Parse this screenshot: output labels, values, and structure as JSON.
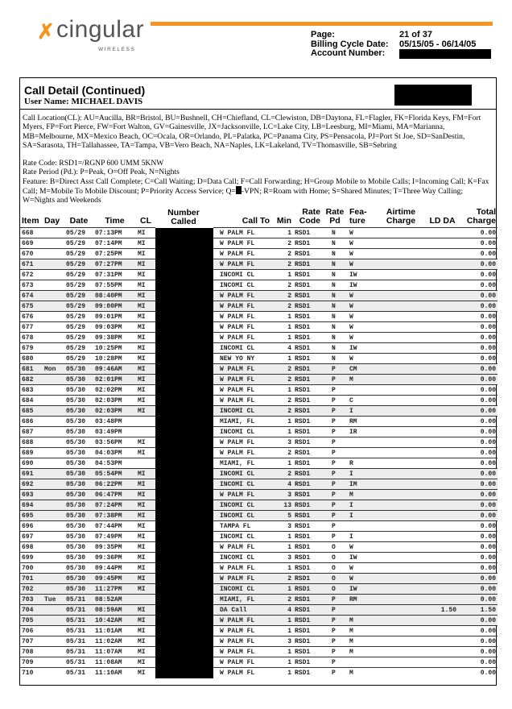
{
  "logo": {
    "brand": "cingular",
    "sub": "WIRELESS",
    "accent": "#f7941d"
  },
  "meta": {
    "page_label": "Page:",
    "page_value": "21 of 37",
    "cycle_label": "Billing Cycle Date:",
    "cycle_value": "05/15/05 - 06/14/05",
    "account_label": "Account Number:"
  },
  "section": {
    "title": "Call Detail (Continued)",
    "user": "User Name: MICHAEL DAVIS"
  },
  "legend": {
    "call_location": "Call Location(CL):  AU=Aucilla, BR=Bristol, BU=Bushnell, CH=Chiefland, CL=Clewiston, DB=Daytona, FL=Flagler, FK=Florida Keys, FM=Fort Myers, FP=Fort Pierce, FW=Fort Walton, GV=Gainesville, JX=Jacksonville, LC=Lake City, LB=Leesburg, MI=Miami, MA=Marianna, MB=Melbourne, MX=Mexico Beach, OC=Ocala, OR=Orlando, PL=Palatka, PC=Panama City, PS=Pensacola, PJ=Port St Joe, SD=SanDestin, SA=Sarasota, TH=Tallahassee, TA=Tampa, VB=Vero Beach, NA=Naples, LK=Lakeland, TV=Thomasville, SB=Sebring",
    "rate_code": "Rate Code: RSD1=/RGNP 600 UMM 5KNW",
    "rate_period": "Rate Period (Pd.): P=Peak, O=Off Peak, N=Nights",
    "feature_a": "Feature: B=Direct Asst Call Complete; C=Call Waiting; D=Data Call; F=Call Forwarding; H=Group Mobile to Mobile Calls; I=Incoming Call; K=Fax Call; M=Mobile To Mobile Discount; P=Priority Access Service; Q=",
    "feature_b": "-VPN; R=Roam with Home; S=Shared Minutes;  T=Three Way Calling; W=Nights and Weekends"
  },
  "columns": [
    "Item",
    "Day",
    "Date",
    "Time",
    "CL",
    "Number Called",
    "Call To",
    "Min",
    "Rate Code",
    "Rate Pd",
    "Fea- ture",
    "Airtime Charge",
    "LD DA",
    "Total Charge"
  ],
  "rows": [
    [
      "668",
      "",
      "05/29",
      "07:13PM",
      "MI",
      "W PALM FL",
      "1",
      "RSD1",
      "N",
      "W",
      "",
      "",
      "0.00"
    ],
    [
      "669",
      "",
      "05/29",
      "07:14PM",
      "MI",
      "W PALM FL",
      "2",
      "RSD1",
      "N",
      "W",
      "",
      "",
      "0.00"
    ],
    [
      "670",
      "",
      "05/29",
      "07:25PM",
      "MI",
      "W PALM FL",
      "2",
      "RSD1",
      "N",
      "W",
      "",
      "",
      "0.00"
    ],
    [
      "671",
      "",
      "05/29",
      "07:27PM",
      "MI",
      "W PALM FL",
      "2",
      "RSD1",
      "N",
      "W",
      "",
      "",
      "0.00"
    ],
    [
      "672",
      "",
      "05/29",
      "07:31PM",
      "MI",
      "INCOMI CL",
      "1",
      "RSD1",
      "N",
      "IW",
      "",
      "",
      "0.00"
    ],
    [
      "673",
      "",
      "05/29",
      "07:55PM",
      "MI",
      "INCOMI CL",
      "2",
      "RSD1",
      "N",
      "IW",
      "",
      "",
      "0.00"
    ],
    [
      "674",
      "",
      "05/29",
      "08:40PM",
      "MI",
      "W PALM FL",
      "2",
      "RSD1",
      "N",
      "W",
      "",
      "",
      "0.00"
    ],
    [
      "675",
      "",
      "05/29",
      "09:00PM",
      "MI",
      "W PALM FL",
      "2",
      "RSD1",
      "N",
      "W",
      "",
      "",
      "0.00"
    ],
    [
      "676",
      "",
      "05/29",
      "09:01PM",
      "MI",
      "W PALM FL",
      "1",
      "RSD1",
      "N",
      "W",
      "",
      "",
      "0.00"
    ],
    [
      "677",
      "",
      "05/29",
      "09:03PM",
      "MI",
      "W PALM FL",
      "1",
      "RSD1",
      "N",
      "W",
      "",
      "",
      "0.00"
    ],
    [
      "678",
      "",
      "05/29",
      "09:38PM",
      "MI",
      "W PALM FL",
      "1",
      "RSD1",
      "N",
      "W",
      "",
      "",
      "0.00"
    ],
    [
      "679",
      "",
      "05/29",
      "10:25PM",
      "MI",
      "INCOMI CL",
      "4",
      "RSD1",
      "N",
      "IW",
      "",
      "",
      "0.00"
    ],
    [
      "680",
      "",
      "05/29",
      "10:28PM",
      "MI",
      "NEW YO NY",
      "1",
      "RSD1",
      "N",
      "W",
      "",
      "",
      "0.00"
    ],
    [
      "681",
      "Mon",
      "05/30",
      "09:46AM",
      "MI",
      "W PALM FL",
      "2",
      "RSD1",
      "P",
      "CM",
      "",
      "",
      "0.00"
    ],
    [
      "682",
      "",
      "05/30",
      "02:01PM",
      "MI",
      "W PALM FL",
      "2",
      "RSD1",
      "P",
      "M",
      "",
      "",
      "0.00"
    ],
    [
      "683",
      "",
      "05/30",
      "02:02PM",
      "MI",
      "W PALM FL",
      "1",
      "RSD1",
      "P",
      "",
      "",
      "",
      "0.00"
    ],
    [
      "684",
      "",
      "05/30",
      "02:03PM",
      "MI",
      "W PALM FL",
      "2",
      "RSD1",
      "P",
      "C",
      "",
      "",
      "0.00"
    ],
    [
      "685",
      "",
      "05/30",
      "02:03PM",
      "MI",
      "INCOMI CL",
      "2",
      "RSD1",
      "P",
      "I",
      "",
      "",
      "0.00"
    ],
    [
      "686",
      "",
      "05/30",
      "03:48PM",
      "",
      "MIAMI, FL",
      "1",
      "RSD1",
      "P",
      "RM",
      "",
      "",
      "0.00"
    ],
    [
      "687",
      "",
      "05/30",
      "03:49PM",
      "",
      "INCOMI CL",
      "1",
      "RSD1",
      "P",
      "IR",
      "",
      "",
      "0.00"
    ],
    [
      "688",
      "",
      "05/30",
      "03:56PM",
      "MI",
      "W PALM FL",
      "3",
      "RSD1",
      "P",
      "",
      "",
      "",
      "0.00"
    ],
    [
      "689",
      "",
      "05/30",
      "04:03PM",
      "MI",
      "W PALM FL",
      "2",
      "RSD1",
      "P",
      "",
      "",
      "",
      "0.00"
    ],
    [
      "690",
      "",
      "05/30",
      "04:53PM",
      "",
      "MIAMI, FL",
      "1",
      "RSD1",
      "P",
      "R",
      "",
      "",
      "0.00"
    ],
    [
      "691",
      "",
      "05/30",
      "05:54PM",
      "MI",
      "INCOMI CL",
      "2",
      "RSD1",
      "P",
      "I",
      "",
      "",
      "0.00"
    ],
    [
      "692",
      "",
      "05/30",
      "06:22PM",
      "MI",
      "INCOMI CL",
      "4",
      "RSD1",
      "P",
      "IM",
      "",
      "",
      "0.00"
    ],
    [
      "693",
      "",
      "05/30",
      "06:47PM",
      "MI",
      "W PALM FL",
      "3",
      "RSD1",
      "P",
      "M",
      "",
      "",
      "0.00"
    ],
    [
      "694",
      "",
      "05/30",
      "07:24PM",
      "MI",
      "INCOMI CL",
      "13",
      "RSD1",
      "P",
      "I",
      "",
      "",
      "0.00"
    ],
    [
      "695",
      "",
      "05/30",
      "07:38PM",
      "MI",
      "INCOMI CL",
      "5",
      "RSD1",
      "P",
      "I",
      "",
      "",
      "0.00"
    ],
    [
      "696",
      "",
      "05/30",
      "07:44PM",
      "MI",
      "TAMPA  FL",
      "3",
      "RSD1",
      "P",
      "",
      "",
      "",
      "0.00"
    ],
    [
      "697",
      "",
      "05/30",
      "07:49PM",
      "MI",
      "INCOMI CL",
      "1",
      "RSD1",
      "P",
      "I",
      "",
      "",
      "0.00"
    ],
    [
      "698",
      "",
      "05/30",
      "09:35PM",
      "MI",
      "W PALM FL",
      "1",
      "RSD1",
      "O",
      "W",
      "",
      "",
      "0.00"
    ],
    [
      "699",
      "",
      "05/30",
      "09:36PM",
      "MI",
      "INCOMI CL",
      "3",
      "RSD1",
      "O",
      "IW",
      "",
      "",
      "0.00"
    ],
    [
      "700",
      "",
      "05/30",
      "09:44PM",
      "MI",
      "W PALM FL",
      "1",
      "RSD1",
      "O",
      "W",
      "",
      "",
      "0.00"
    ],
    [
      "701",
      "",
      "05/30",
      "09:45PM",
      "MI",
      "W PALM FL",
      "2",
      "RSD1",
      "O",
      "W",
      "",
      "",
      "0.00"
    ],
    [
      "702",
      "",
      "05/30",
      "11:27PM",
      "MI",
      "INCOMI CL",
      "1",
      "RSD1",
      "O",
      "IW",
      "",
      "",
      "0.00"
    ],
    [
      "703",
      "Tue",
      "05/31",
      "08:52AM",
      "",
      "MIAMI, FL",
      "2",
      "RSD1",
      "P",
      "RM",
      "",
      "",
      "0.00"
    ],
    [
      "704",
      "",
      "05/31",
      "08:59AM",
      "MI",
      "DA Call",
      "4",
      "RSD1",
      "P",
      "",
      "",
      "1.50",
      "1.50"
    ],
    [
      "705",
      "",
      "05/31",
      "10:42AM",
      "MI",
      "W PALM FL",
      "1",
      "RSD1",
      "P",
      "M",
      "",
      "",
      "0.00"
    ],
    [
      "706",
      "",
      "05/31",
      "11:01AM",
      "MI",
      "W PALM FL",
      "1",
      "RSD1",
      "P",
      "M",
      "",
      "",
      "0.00"
    ],
    [
      "707",
      "",
      "05/31",
      "11:02AM",
      "MI",
      "W PALM FL",
      "3",
      "RSD1",
      "P",
      "M",
      "",
      "",
      "0.00"
    ],
    [
      "708",
      "",
      "05/31",
      "11:07AM",
      "MI",
      "W PALM FL",
      "1",
      "RSD1",
      "P",
      "M",
      "",
      "",
      "0.00"
    ],
    [
      "709",
      "",
      "05/31",
      "11:08AM",
      "MI",
      "W PALM FL",
      "1",
      "RSD1",
      "P",
      "",
      "",
      "",
      "0.00"
    ],
    [
      "710",
      "",
      "05/31",
      "11:10AM",
      "MI",
      "W PALM FL",
      "1",
      "RSD1",
      "P",
      "M",
      "",
      "",
      "0.00"
    ]
  ]
}
